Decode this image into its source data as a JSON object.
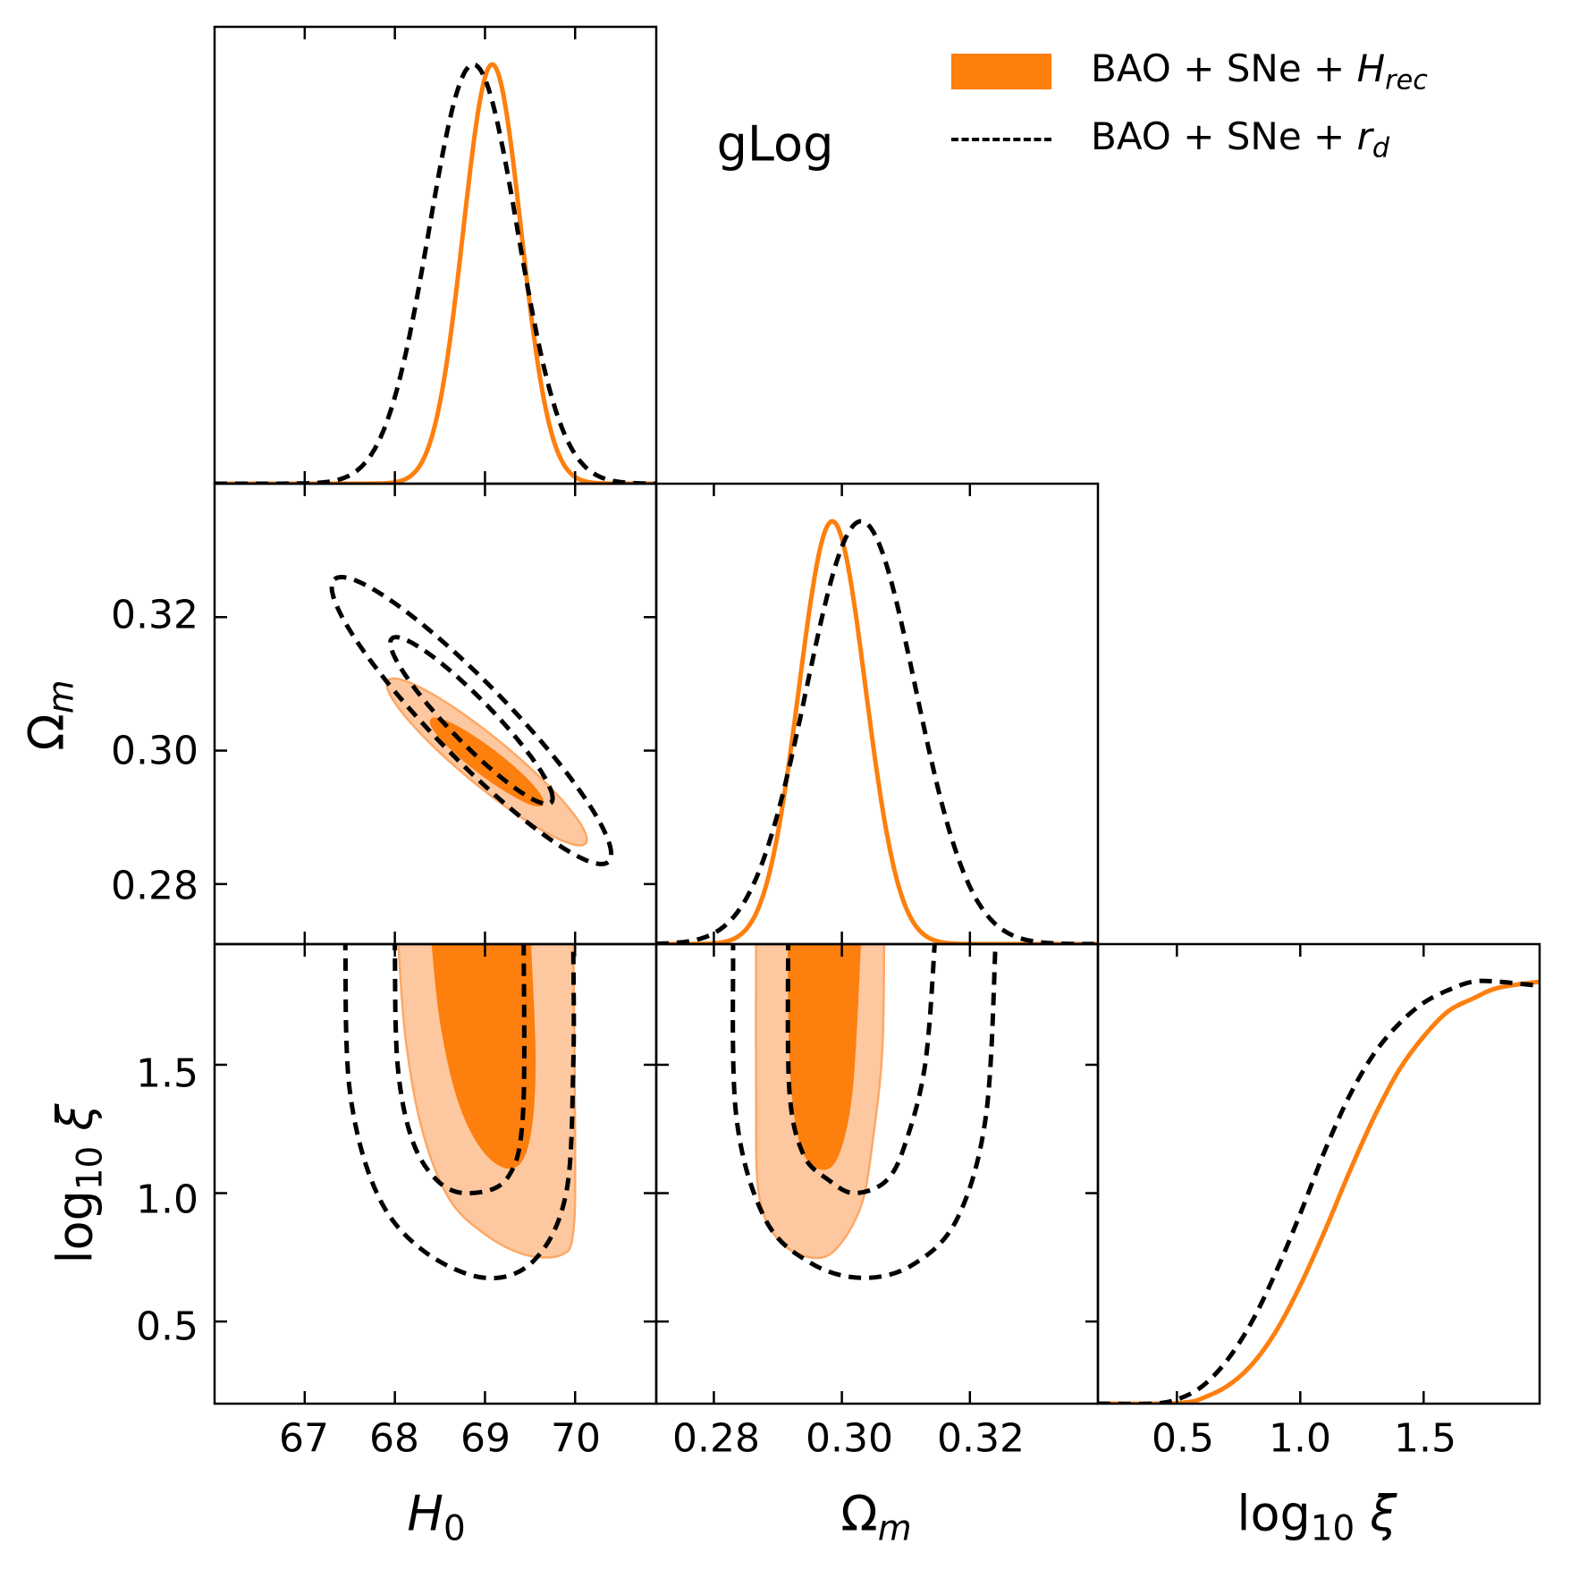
{
  "chart_data": {
    "type": "corner-plot",
    "annotation": "gLog",
    "colors": {
      "orange": "#fd7f0e",
      "orange_light": "#fdc8a0",
      "orange_edge": "#fda866",
      "black": "#000000"
    },
    "legend": [
      {
        "label_main": "BAO + SNe + ",
        "label_var": "H",
        "label_sub": "rec",
        "style": "filled",
        "color": "#fd7f0e"
      },
      {
        "label_main": "BAO + SNe + ",
        "label_var": "r",
        "label_sub": "d",
        "style": "dashed",
        "color": "#000000"
      }
    ],
    "parameters": [
      {
        "key": "H0",
        "label_main": "H",
        "label_sub": "0",
        "range": [
          66.0,
          70.9
        ],
        "ticks": [
          67,
          68,
          69,
          70
        ],
        "tick_labels": [
          "67",
          "68",
          "69",
          "70"
        ]
      },
      {
        "key": "Om",
        "label_main": "Ω",
        "label_sub": "m",
        "range": [
          0.271,
          0.34
        ],
        "ticks": [
          0.28,
          0.3,
          0.32
        ],
        "tick_labels": [
          "0.28",
          "0.30",
          "0.32"
        ]
      },
      {
        "key": "logxi",
        "label_main": "log",
        "label_sub": "10",
        "label_var": "ξ",
        "range": [
          0.18,
          1.97
        ],
        "ticks": [
          0.5,
          1.0,
          1.5
        ],
        "tick_labels": [
          "0.5",
          "1.0",
          "1.5"
        ]
      }
    ],
    "series": [
      {
        "name": "BAO + SNe + Hrec",
        "style": "filled",
        "marginals": {
          "H0": {
            "shape": "gaussian",
            "mean": 69.08,
            "sigma": 0.32
          },
          "Om": {
            "shape": "gaussian",
            "mean": 0.2985,
            "sigma": 0.0052
          },
          "logxi": {
            "shape": "sigmoid",
            "x": [
              0.18,
              0.45,
              0.55,
              0.6,
              0.7,
              0.8,
              0.9,
              1.0,
              1.1,
              1.2,
              1.3,
              1.4,
              1.5,
              1.6,
              1.7,
              1.8,
              1.97
            ],
            "y": [
              0.0,
              0.0,
              0.004,
              0.012,
              0.04,
              0.09,
              0.17,
              0.28,
              0.41,
              0.55,
              0.68,
              0.79,
              0.87,
              0.93,
              0.96,
              0.985,
              1.0
            ]
          }
        },
        "contours": {
          "H0_Om": {
            "center": [
              69.02,
              0.2983
            ],
            "levels": [
              {
                "sigma": 1,
                "rx_h0": 0.62,
                "rx_om": 0.0065
              },
              {
                "sigma": 2,
                "rx_h0": 1.11,
                "rx_om": 0.0125
              }
            ]
          },
          "H0_logxi": {
            "levels": [
              {
                "sigma": 1,
                "points": [
                  [
                    68.42,
                    1.97
                  ],
                  [
                    68.52,
                    1.65
                  ],
                  [
                    68.72,
                    1.35
                  ],
                  [
                    69.0,
                    1.16
                  ],
                  [
                    69.3,
                    1.1
                  ],
                  [
                    69.48,
                    1.2
                  ],
                  [
                    69.55,
                    1.5
                  ],
                  [
                    69.5,
                    1.97
                  ]
                ]
              },
              {
                "sigma": 2,
                "points": [
                  [
                    68.04,
                    1.97
                  ],
                  [
                    68.12,
                    1.6
                  ],
                  [
                    68.3,
                    1.25
                  ],
                  [
                    68.6,
                    0.98
                  ],
                  [
                    69.0,
                    0.84
                  ],
                  [
                    69.45,
                    0.76
                  ],
                  [
                    69.85,
                    0.76
                  ],
                  [
                    69.98,
                    0.85
                  ],
                  [
                    70.0,
                    1.2
                  ],
                  [
                    69.98,
                    1.97
                  ]
                ]
              }
            ]
          },
          "Om_logxi": {
            "levels": [
              {
                "sigma": 1,
                "points": [
                  [
                    0.2917,
                    1.97
                  ],
                  [
                    0.292,
                    1.5
                  ],
                  [
                    0.2935,
                    1.2
                  ],
                  [
                    0.2962,
                    1.1
                  ],
                  [
                    0.2992,
                    1.14
                  ],
                  [
                    0.3015,
                    1.4
                  ],
                  [
                    0.3028,
                    1.97
                  ]
                ]
              },
              {
                "sigma": 2,
                "points": [
                  [
                    0.2866,
                    1.97
                  ],
                  [
                    0.2866,
                    1.4
                  ],
                  [
                    0.287,
                    1.0
                  ],
                  [
                    0.29,
                    0.82
                  ],
                  [
                    0.295,
                    0.75
                  ],
                  [
                    0.299,
                    0.78
                  ],
                  [
                    0.303,
                    0.95
                  ],
                  [
                    0.3048,
                    1.2
                  ],
                  [
                    0.3063,
                    1.55
                  ],
                  [
                    0.3066,
                    1.97
                  ]
                ]
              }
            ]
          }
        }
      },
      {
        "name": "BAO + SNe + rd",
        "style": "dashed",
        "marginals": {
          "H0": {
            "shape": "gaussian",
            "mean": 68.87,
            "sigma": 0.49
          },
          "Om": {
            "shape": "gaussian",
            "mean": 0.303,
            "sigma": 0.0085
          },
          "logxi": {
            "shape": "sigmoid",
            "x": [
              0.18,
              0.4,
              0.5,
              0.6,
              0.7,
              0.8,
              0.9,
              1.0,
              1.1,
              1.2,
              1.3,
              1.4,
              1.5,
              1.6,
              1.7,
              1.8,
              1.97
            ],
            "y": [
              0.0,
              0.0,
              0.01,
              0.04,
              0.1,
              0.19,
              0.31,
              0.45,
              0.6,
              0.73,
              0.83,
              0.9,
              0.95,
              0.98,
              1.0,
              1.0,
              0.99
            ]
          }
        },
        "contours": {
          "H0_Om": {
            "center": [
              68.85,
              0.3045
            ],
            "levels": [
              {
                "sigma": 1,
                "rx_h0": 0.9,
                "rx_om": 0.0125
              },
              {
                "sigma": 2,
                "rx_h0": 1.55,
                "rx_om": 0.0215
              }
            ]
          },
          "H0_logxi": {
            "levels": [
              {
                "sigma": 1,
                "points": [
                  [
                    68.0,
                    1.97
                  ],
                  [
                    68.03,
                    1.5
                  ],
                  [
                    68.2,
                    1.2
                  ],
                  [
                    68.5,
                    1.04
                  ],
                  [
                    68.85,
                    1.0
                  ],
                  [
                    69.25,
                    1.06
                  ],
                  [
                    69.42,
                    1.3
                  ],
                  [
                    69.43,
                    1.97
                  ]
                ]
              },
              {
                "sigma": 2,
                "points": [
                  [
                    67.45,
                    1.97
                  ],
                  [
                    67.5,
                    1.4
                  ],
                  [
                    67.8,
                    1.0
                  ],
                  [
                    68.3,
                    0.78
                  ],
                  [
                    69.0,
                    0.67
                  ],
                  [
                    69.55,
                    0.74
                  ],
                  [
                    69.9,
                    1.0
                  ],
                  [
                    69.98,
                    1.5
                  ],
                  [
                    69.98,
                    1.97
                  ]
                ]
              }
            ]
          },
          "Om_logxi": {
            "levels": [
              {
                "sigma": 1,
                "points": [
                  [
                    0.2916,
                    1.97
                  ],
                  [
                    0.2918,
                    1.4
                  ],
                  [
                    0.294,
                    1.15
                  ],
                  [
                    0.298,
                    1.05
                  ],
                  [
                    0.302,
                    1.0
                  ],
                  [
                    0.307,
                    1.05
                  ],
                  [
                    0.31,
                    1.2
                  ],
                  [
                    0.313,
                    1.5
                  ],
                  [
                    0.3145,
                    1.97
                  ]
                ]
              },
              {
                "sigma": 2,
                "points": [
                  [
                    0.283,
                    1.97
                  ],
                  [
                    0.2835,
                    1.3
                  ],
                  [
                    0.288,
                    0.9
                  ],
                  [
                    0.295,
                    0.73
                  ],
                  [
                    0.303,
                    0.67
                  ],
                  [
                    0.311,
                    0.72
                  ],
                  [
                    0.318,
                    0.9
                  ],
                  [
                    0.3225,
                    1.3
                  ],
                  [
                    0.324,
                    1.97
                  ]
                ]
              }
            ]
          }
        }
      }
    ]
  }
}
